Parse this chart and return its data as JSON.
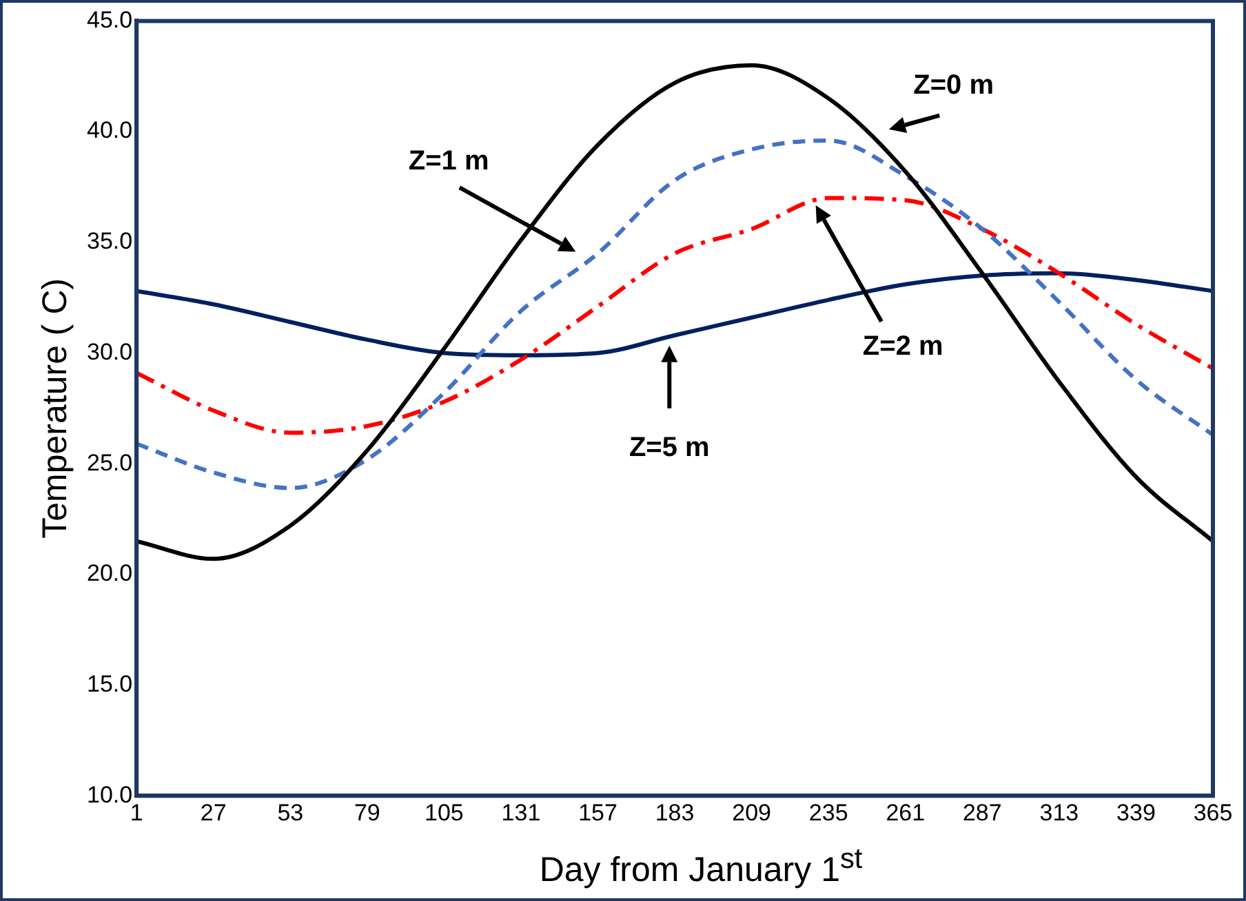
{
  "chart_data": {
    "type": "line",
    "xlabel": "Day from January 1$^{st}$",
    "ylabel": "Temperature ( C)",
    "x": [
      1,
      27,
      53,
      79,
      105,
      131,
      157,
      183,
      209,
      235,
      261,
      287,
      313,
      339,
      365
    ],
    "xlim": [
      1,
      365
    ],
    "xticks": [
      1,
      27,
      53,
      79,
      105,
      131,
      157,
      183,
      209,
      235,
      261,
      287,
      313,
      339,
      365
    ],
    "ylim": [
      10,
      45
    ],
    "yticks": [
      {
        "value": 10,
        "label": "10.0"
      },
      {
        "value": 15,
        "label": "15.0"
      },
      {
        "value": 20,
        "label": "20.0"
      },
      {
        "value": 25,
        "label": "25.0"
      },
      {
        "value": 30,
        "label": "30.0"
      },
      {
        "value": 35,
        "label": "35.0"
      },
      {
        "value": 40,
        "label": "40.0"
      },
      {
        "value": 45,
        "label": "45.0"
      }
    ],
    "grid": false,
    "legend": false,
    "marker": "none",
    "annotations": [
      "Z=0 m",
      "Z=1 m",
      "Z=2 m",
      "Z=5 m"
    ],
    "series": [
      {
        "color": "#000000",
        "line_style": "solid",
        "values": [
          21.5,
          20.7,
          22.2,
          25.6,
          30.2,
          35.1,
          39.4,
          42.2,
          43.0,
          41.5,
          38.2,
          33.6,
          28.7,
          24.4,
          21.5
        ]
      },
      {
        "color": "#4472c4",
        "line_style": "dashed",
        "values": [
          25.9,
          24.6,
          23.9,
          25.2,
          28.2,
          31.9,
          34.5,
          37.8,
          39.2,
          39.6,
          38.0,
          35.6,
          32.3,
          28.8,
          26.3
        ]
      },
      {
        "color": "#ff0000",
        "line_style": "dashdot",
        "values": [
          29.1,
          27.4,
          26.4,
          26.7,
          27.8,
          29.7,
          32.1,
          34.5,
          35.6,
          37.0,
          36.9,
          35.6,
          33.6,
          31.3,
          29.3
        ]
      },
      {
        "color": "#002060",
        "line_style": "solid",
        "values": [
          32.8,
          32.2,
          31.4,
          30.6,
          30.0,
          29.9,
          30.0,
          30.8,
          31.6,
          32.4,
          33.1,
          33.5,
          33.6,
          33.3,
          32.8
        ]
      }
    ]
  }
}
